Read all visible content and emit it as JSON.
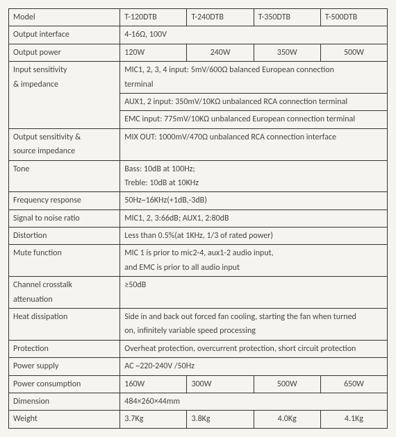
{
  "rows": {
    "model_label": "Model",
    "model_vals": [
      "T-120DTB",
      "T-240DTB",
      "T-350DTB",
      "T-500DTB"
    ],
    "output_interface_label": "Output interface",
    "output_interface_val": "4-16Ω, 100V",
    "output_power_label": "Output power",
    "output_power_vals": [
      "120W",
      "240W",
      "350W",
      "500W"
    ],
    "input_sens_label_l1": "Input sensitivity",
    "input_sens_label_l2": "& impedance",
    "input_sens_v1_l1": "MIC1, 2, 3, 4 input: 5mV/600Ω balanced European connection",
    "input_sens_v1_l2": "terminal",
    "input_sens_v2": "AUX1, 2 input: 350mV/10KΩ unbalanced RCA connection terminal",
    "input_sens_v3": "EMC input: 775mV/10KΩ unbalanced European connection terminal",
    "output_sens_label_l1": "Output sensitivity &",
    "output_sens_label_l2": "source impedance",
    "output_sens_val": "MIX OUT: 1000mV/470Ω unbalanced RCA connection interface",
    "tone_label": "Tone",
    "tone_v1": "Bass: 10dB at 100Hz;",
    "tone_v2": "Treble: 10dB at 10KHz",
    "freq_label": "Frequency response",
    "freq_val": "50Hz~16KHz(+1dB,-3dB)",
    "snr_label": "Signal to noise ratio",
    "snr_val": "MIC1, 2, 3:66dB; AUX1, 2:80dB",
    "dist_label": "Distortion",
    "dist_val": "Less than 0.5%(at 1KHz, 1/3 of rated power)",
    "mute_label": "Mute function",
    "mute_v1": "MIC 1 is prior to mic2-4, aux1-2 audio input,",
    "mute_v2": "and EMC is prior to all audio input",
    "crosstalk_label_l1": "Channel crosstalk",
    "crosstalk_label_l2": "attenuation",
    "crosstalk_val": "≥50dB",
    "heat_label": "Heat dissipation",
    "heat_v1": "Side in and back out forced fan cooling, starting the fan when turned",
    "heat_v2": "on, infinitely variable speed processing",
    "prot_label": "Protection",
    "prot_val": "Overheat protection, overcurrent protection, short circuit protection",
    "psu_label": "Power supply",
    "psu_val": "AC ~220-240V /50Hz",
    "pcons_label": "Power consumption",
    "pcons_vals": [
      "160W",
      "300W",
      "500W",
      "650W"
    ],
    "dim_label": "Dimension",
    "dim_val": "484×260×44mm",
    "weight_label": "Weight",
    "weight_vals": [
      "3.7Kg",
      "3.8Kg",
      "4.0Kg",
      "4.1Kg"
    ]
  }
}
